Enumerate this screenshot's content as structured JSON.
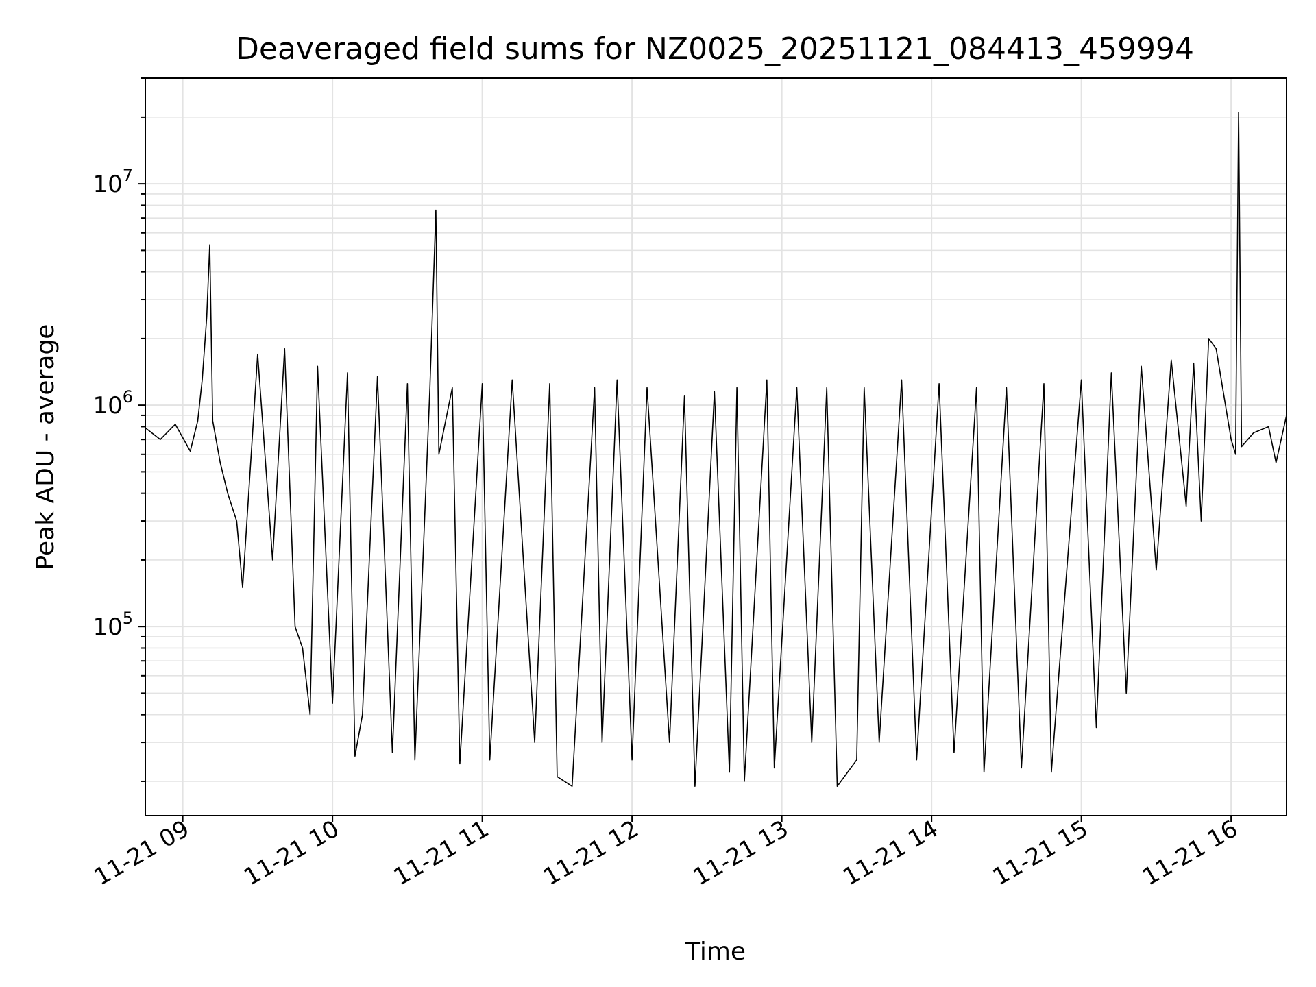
{
  "chart_data": {
    "type": "line",
    "title": "Deaveraged field sums for NZ0025_20251121_084413_459994",
    "xlabel": "Time",
    "ylabel": "Peak ADU - average",
    "yscale": "log",
    "ylim": [
      14000,
      30000000
    ],
    "xlim_hours": [
      8.75,
      16.37
    ],
    "grid": true,
    "legend": "none",
    "line_color": "#000000",
    "x_ticks": [
      {
        "hour": 9,
        "label": "11-21 09"
      },
      {
        "hour": 10,
        "label": "11-21 10"
      },
      {
        "hour": 11,
        "label": "11-21 11"
      },
      {
        "hour": 12,
        "label": "11-21 12"
      },
      {
        "hour": 13,
        "label": "11-21 13"
      },
      {
        "hour": 14,
        "label": "11-21 14"
      },
      {
        "hour": 15,
        "label": "11-21 15"
      },
      {
        "hour": 16,
        "label": "11-21 16"
      }
    ],
    "y_ticks": [
      {
        "value": 100000,
        "base": "10",
        "exp": "5"
      },
      {
        "value": 1000000,
        "base": "10",
        "exp": "6"
      },
      {
        "value": 10000000,
        "base": "10",
        "exp": "7"
      }
    ],
    "series": [
      {
        "points": [
          [
            8.75,
            790000
          ],
          [
            8.85,
            700000
          ],
          [
            8.95,
            820000
          ],
          [
            9.05,
            620000
          ],
          [
            9.1,
            850000
          ],
          [
            9.13,
            1300000
          ],
          [
            9.16,
            2500000
          ],
          [
            9.18,
            5300000
          ],
          [
            9.2,
            850000
          ],
          [
            9.25,
            550000
          ],
          [
            9.3,
            400000
          ],
          [
            9.36,
            300000
          ],
          [
            9.4,
            150000
          ],
          [
            9.5,
            1700000
          ],
          [
            9.6,
            200000
          ],
          [
            9.68,
            1800000
          ],
          [
            9.75,
            100000
          ],
          [
            9.8,
            80000
          ],
          [
            9.85,
            40000
          ],
          [
            9.9,
            1500000
          ],
          [
            10.0,
            45000
          ],
          [
            10.1,
            1400000
          ],
          [
            10.15,
            26000
          ],
          [
            10.2,
            40000
          ],
          [
            10.3,
            1350000
          ],
          [
            10.4,
            27000
          ],
          [
            10.5,
            1250000
          ],
          [
            10.55,
            25000
          ],
          [
            10.65,
            1200000
          ],
          [
            10.69,
            7600000
          ],
          [
            10.71,
            600000
          ],
          [
            10.8,
            1200000
          ],
          [
            10.85,
            24000
          ],
          [
            11.0,
            1250000
          ],
          [
            11.05,
            25000
          ],
          [
            11.2,
            1300000
          ],
          [
            11.35,
            30000
          ],
          [
            11.45,
            1250000
          ],
          [
            11.5,
            21000
          ],
          [
            11.6,
            19000
          ],
          [
            11.75,
            1200000
          ],
          [
            11.8,
            30000
          ],
          [
            11.9,
            1300000
          ],
          [
            12.0,
            25000
          ],
          [
            12.1,
            1200000
          ],
          [
            12.25,
            30000
          ],
          [
            12.35,
            1100000
          ],
          [
            12.42,
            19000
          ],
          [
            12.55,
            1150000
          ],
          [
            12.65,
            22000
          ],
          [
            12.7,
            1200000
          ],
          [
            12.75,
            20000
          ],
          [
            12.9,
            1300000
          ],
          [
            12.95,
            23000
          ],
          [
            13.1,
            1200000
          ],
          [
            13.2,
            30000
          ],
          [
            13.3,
            1200000
          ],
          [
            13.37,
            19000
          ],
          [
            13.5,
            25000
          ],
          [
            13.55,
            1200000
          ],
          [
            13.65,
            30000
          ],
          [
            13.8,
            1300000
          ],
          [
            13.9,
            25000
          ],
          [
            14.05,
            1250000
          ],
          [
            14.15,
            27000
          ],
          [
            14.3,
            1200000
          ],
          [
            14.35,
            22000
          ],
          [
            14.5,
            1200000
          ],
          [
            14.6,
            23000
          ],
          [
            14.75,
            1250000
          ],
          [
            14.8,
            22000
          ],
          [
            15.0,
            1300000
          ],
          [
            15.1,
            35000
          ],
          [
            15.2,
            1400000
          ],
          [
            15.3,
            50000
          ],
          [
            15.4,
            1500000
          ],
          [
            15.5,
            180000
          ],
          [
            15.6,
            1600000
          ],
          [
            15.7,
            350000
          ],
          [
            15.75,
            1550000
          ],
          [
            15.8,
            300000
          ],
          [
            15.85,
            2000000
          ],
          [
            15.9,
            1800000
          ],
          [
            16.0,
            700000
          ],
          [
            16.03,
            600000
          ],
          [
            16.05,
            21000000
          ],
          [
            16.07,
            650000
          ],
          [
            16.15,
            750000
          ],
          [
            16.25,
            800000
          ],
          [
            16.3,
            550000
          ],
          [
            16.37,
            900000
          ]
        ]
      }
    ]
  }
}
